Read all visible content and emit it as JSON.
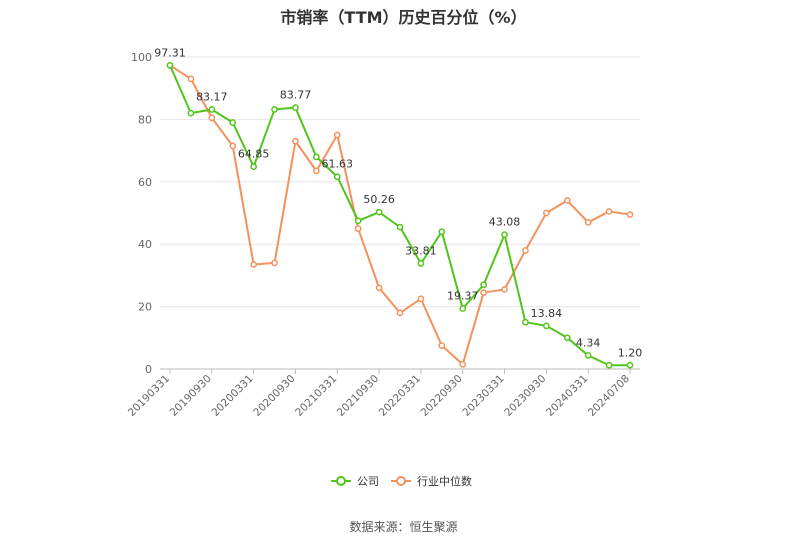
{
  "chart_data": {
    "type": "line",
    "title": "市销率（TTM）历史百分位（%）",
    "xlabel": "",
    "ylabel": "",
    "ylim": [
      0,
      100
    ],
    "yticks": [
      0,
      20,
      40,
      60,
      80,
      100
    ],
    "grid": true,
    "legend_position": "bottom",
    "categories": [
      "20190331",
      "20190630",
      "20190930",
      "20191231",
      "20200331",
      "20200630",
      "20200930",
      "20201231",
      "20210331",
      "20210630",
      "20210930",
      "20211231",
      "20220331",
      "20220630",
      "20220930",
      "20221231",
      "20230331",
      "20230630",
      "20230930",
      "20231231",
      "20240331",
      "20240630",
      "20240708"
    ],
    "tick_labels": [
      "20190331",
      "20190930",
      "20200331",
      "20200930",
      "20210331",
      "20210930",
      "20220331",
      "20220930",
      "20230331",
      "20230930",
      "20240331",
      "20240708"
    ],
    "series": [
      {
        "name": "公司",
        "color": "#52c41a",
        "values": [
          97.31,
          82.0,
          83.17,
          79.0,
          64.85,
          83.2,
          83.77,
          68.0,
          61.63,
          47.5,
          50.26,
          45.5,
          33.81,
          44.0,
          19.37,
          27.0,
          43.08,
          15.0,
          13.84,
          10.0,
          4.34,
          1.2,
          1.2
        ]
      },
      {
        "name": "行业中位数",
        "color": "#f4915c",
        "values": [
          97.3,
          93.0,
          80.5,
          71.5,
          33.5,
          34.0,
          73.0,
          63.5,
          75.0,
          45.0,
          26.0,
          18.0,
          22.5,
          7.5,
          1.5,
          24.5,
          25.5,
          38.0,
          50.0,
          54.0,
          47.0,
          50.5,
          49.5
        ]
      }
    ],
    "data_labels": [
      {
        "index": 0,
        "text": "97.31"
      },
      {
        "index": 2,
        "text": "83.17"
      },
      {
        "index": 4,
        "text": "64.85"
      },
      {
        "index": 6,
        "text": "83.77"
      },
      {
        "index": 8,
        "text": "61.63"
      },
      {
        "index": 10,
        "text": "50.26"
      },
      {
        "index": 12,
        "text": "33.81"
      },
      {
        "index": 14,
        "text": "19.37"
      },
      {
        "index": 16,
        "text": "43.08"
      },
      {
        "index": 18,
        "text": "13.84"
      },
      {
        "index": 20,
        "text": "4.34"
      },
      {
        "index": 22,
        "text": "1.20"
      }
    ]
  },
  "source_text": "数据来源：恒生聚源"
}
